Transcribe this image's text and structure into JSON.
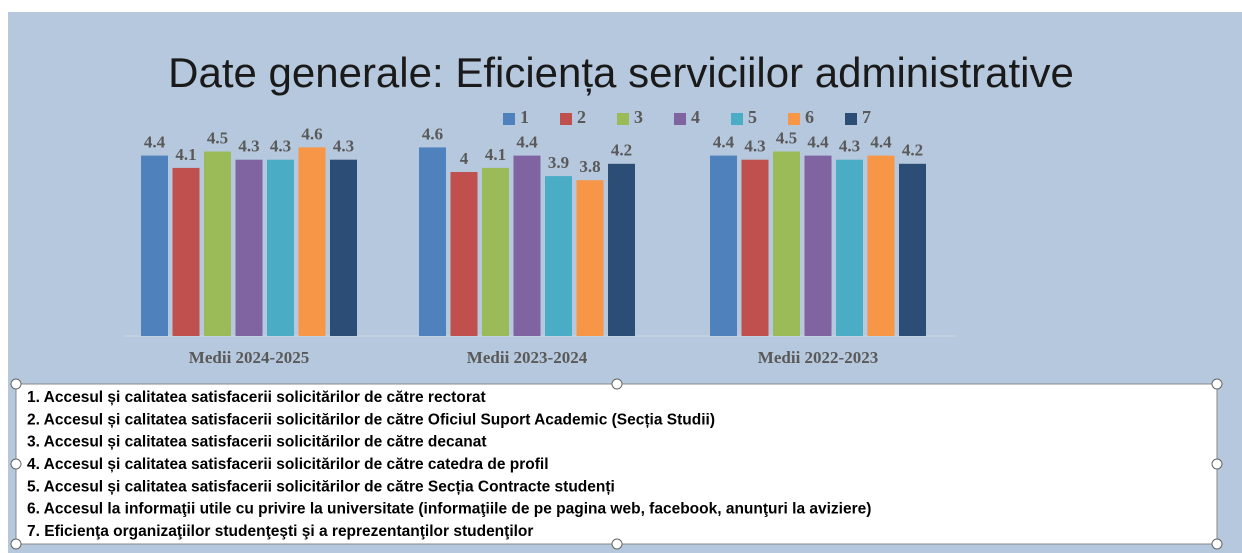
{
  "chart_data": {
    "type": "bar",
    "title": "Date generale: Eficiența serviciilor administrative",
    "categories": [
      "Medii 2024-2025",
      "Medii 2023-2024",
      "Medii 2022-2023"
    ],
    "series": [
      {
        "name": "1",
        "color": "#4f81bd",
        "values": [
          4.4,
          4.6,
          4.4
        ]
      },
      {
        "name": "2",
        "color": "#c0504d",
        "values": [
          4.1,
          4,
          4.3
        ]
      },
      {
        "name": "3",
        "color": "#9bbb59",
        "values": [
          4.5,
          4.1,
          4.5
        ]
      },
      {
        "name": "4",
        "color": "#8064a2",
        "values": [
          4.3,
          4.4,
          4.4
        ]
      },
      {
        "name": "5",
        "color": "#4bacc6",
        "values": [
          4.3,
          3.9,
          4.3
        ]
      },
      {
        "name": "6",
        "color": "#f79646",
        "values": [
          4.6,
          3.8,
          4.4
        ]
      },
      {
        "name": "7",
        "color": "#2c4d75",
        "values": [
          4.3,
          4.2,
          4.2
        ]
      }
    ],
    "ylim": [
      0,
      5
    ],
    "legend": "top"
  },
  "notes": [
    "1. Accesul și calitatea satisfacerii solicitărilor de către rectorat",
    "2. Accesul și calitatea satisfacerii solicitărilor de către Oficiul Suport Academic (Secția Studii)",
    "3. Accesul și calitatea satisfacerii solicitărilor de către decanat",
    "4. Accesul și calitatea satisfacerii solicitărilor de către catedra de profil",
    "5. Accesul și calitatea satisfacerii solicitărilor de către Secția Contracte studenți",
    "6. Accesul la informaţii utile cu privire la universitate (informaţiile de pe pagina web, facebook, anunţuri la aviziere)",
    "7. Eficienţa organizaţiilor studenţeşti şi a reprezentanţilor studenţilor"
  ]
}
